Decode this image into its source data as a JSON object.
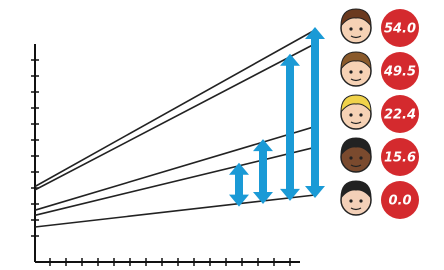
{
  "chart_data": {
    "type": "line",
    "values": [
      54,
      49.5,
      22.4,
      15.6,
      0
    ],
    "value_labels": [
      "54.0",
      "49.5",
      "22.4",
      "15.6",
      "0.0"
    ],
    "color": "#1a9ad6",
    "label_color": "#d42a2e"
  }
}
